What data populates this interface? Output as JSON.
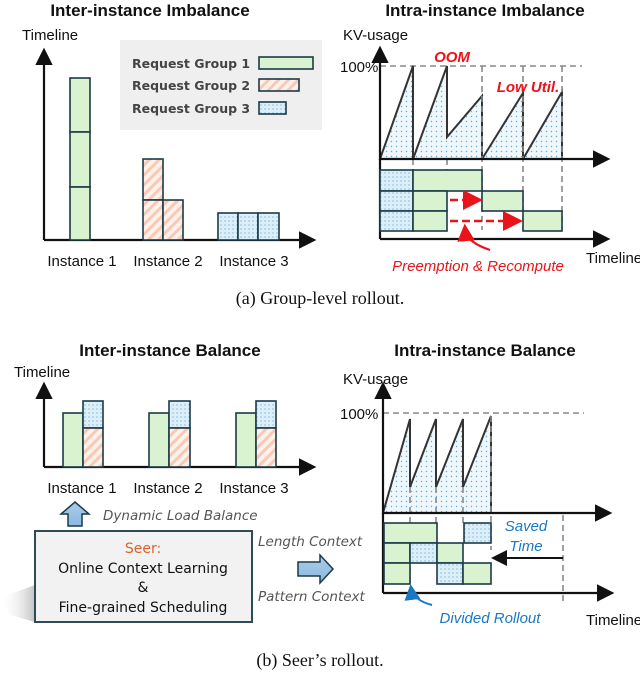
{
  "panel_a": {
    "left": {
      "title": "Inter-instance Imbalance",
      "y_label": "Timeline",
      "legend": [
        "Request Group 1",
        "Request Group 2",
        "Request Group 3"
      ],
      "instances": [
        "Instance 1",
        "Instance 2",
        "Instance 3"
      ]
    },
    "right": {
      "title": "Intra-instance Imbalance",
      "y_label": "KV-usage",
      "y_tick": "100%",
      "oom": "OOM",
      "low_util": "Low Util.",
      "preemption": "Preemption & Recompute",
      "x_label": "Timeline"
    },
    "caption": "(a) Group-level rollout."
  },
  "panel_b": {
    "left": {
      "title": "Inter-instance Balance",
      "y_label": "Timeline",
      "instances": [
        "Instance 1",
        "Instance 2",
        "Instance 3"
      ],
      "dynamic_load_balance": "Dynamic Load Balance"
    },
    "seer_box": {
      "name": "Seer:",
      "line1": "Online Context Learning",
      "line2": "&",
      "line3": "Fine-grained Scheduling"
    },
    "length_context": "Length Context",
    "pattern_context": "Pattern Context",
    "right": {
      "title": "Intra-instance Balance",
      "y_label": "KV-usage",
      "y_tick": "100%",
      "saved_time_1": "Saved",
      "saved_time_2": "Time",
      "divided_rollout": "Divided Rollout",
      "x_label": "Timeline"
    },
    "caption": "(b) Seer’s rollout."
  },
  "colors": {
    "group1": "#d9f2d0",
    "group2": "#f6b9a0",
    "group3": "#9cc8e6",
    "alert": "#e8141a",
    "highlight": "#1a78c2",
    "seer": "#d9622b"
  }
}
